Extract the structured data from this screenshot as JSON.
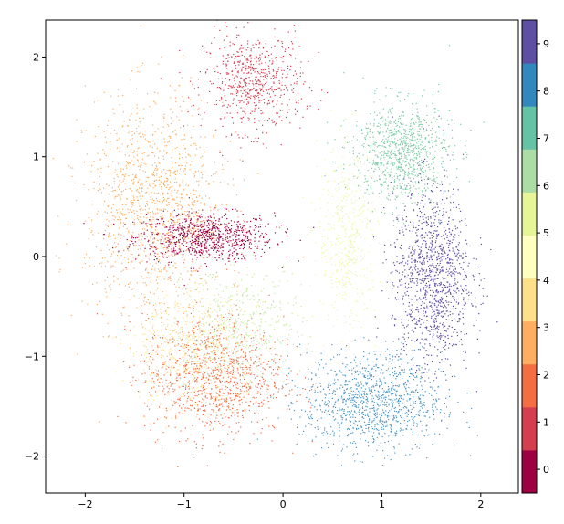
{
  "chart_data": {
    "type": "scatter",
    "title": "",
    "xlabel": "",
    "ylabel": "",
    "xlim": [
      -2.4,
      2.38
    ],
    "ylim": [
      -2.37,
      2.37
    ],
    "x_ticks": [
      -2,
      -1,
      0,
      1,
      2
    ],
    "x_tick_labels": [
      "−2",
      "−1",
      "0",
      "1",
      "2"
    ],
    "y_ticks": [
      -2,
      -1,
      0,
      1,
      2
    ],
    "y_tick_labels": [
      "−2",
      "−1",
      "0",
      "1",
      "2"
    ],
    "grid": false,
    "colorbar": {
      "type": "discrete",
      "categories": [
        "0",
        "1",
        "2",
        "3",
        "4",
        "5",
        "6",
        "7",
        "8",
        "9"
      ],
      "colors": [
        "#9e0142",
        "#d53e4f",
        "#f46d43",
        "#fdae61",
        "#fee08b",
        "#ffffbf",
        "#e6f598",
        "#abdda4",
        "#66c2a5",
        "#3288bd",
        "#5e4fa2"
      ]
    },
    "clusters": [
      {
        "label": "0",
        "color": "#9e0142",
        "center": [
          -0.8,
          0.2
        ],
        "spread": [
          0.35,
          0.12
        ],
        "approx_point_share": 0.09
      },
      {
        "label": "1",
        "color": "#d53e4f",
        "center": [
          -0.3,
          1.75
        ],
        "spread": [
          0.25,
          0.25
        ],
        "approx_point_share": 0.07
      },
      {
        "label": "2",
        "color": "#f46d43",
        "center": [
          -0.7,
          -1.2
        ],
        "spread": [
          0.35,
          0.3
        ],
        "approx_point_share": 0.11
      },
      {
        "label": "3",
        "color": "#fdae61",
        "center": [
          -1.3,
          0.5
        ],
        "spread": [
          0.35,
          0.55
        ],
        "approx_point_share": 0.14
      },
      {
        "label": "4",
        "color": "#fee08b",
        "center": [
          -1.0,
          -0.9
        ],
        "spread": [
          0.3,
          0.3
        ],
        "approx_point_share": 0.06
      },
      {
        "label": "5",
        "color": "#eef6a0",
        "center": [
          0.65,
          0.2
        ],
        "spread": [
          0.15,
          0.45
        ],
        "approx_point_share": 0.05
      },
      {
        "label": "6",
        "color": "#c7e89e",
        "center": [
          -0.4,
          -0.7
        ],
        "spread": [
          0.3,
          0.3
        ],
        "approx_point_share": 0.05
      },
      {
        "label": "7",
        "color": "#7ccba5",
        "center": [
          1.2,
          1.05
        ],
        "spread": [
          0.25,
          0.25
        ],
        "approx_point_share": 0.1
      },
      {
        "label": "8",
        "color": "#4c96c4",
        "center": [
          0.9,
          -1.45
        ],
        "spread": [
          0.35,
          0.25
        ],
        "approx_point_share": 0.12
      },
      {
        "label": "9",
        "color": "#5e4fa2",
        "center": [
          1.5,
          -0.2
        ],
        "spread": [
          0.2,
          0.45
        ],
        "approx_point_share": 0.13
      }
    ]
  }
}
